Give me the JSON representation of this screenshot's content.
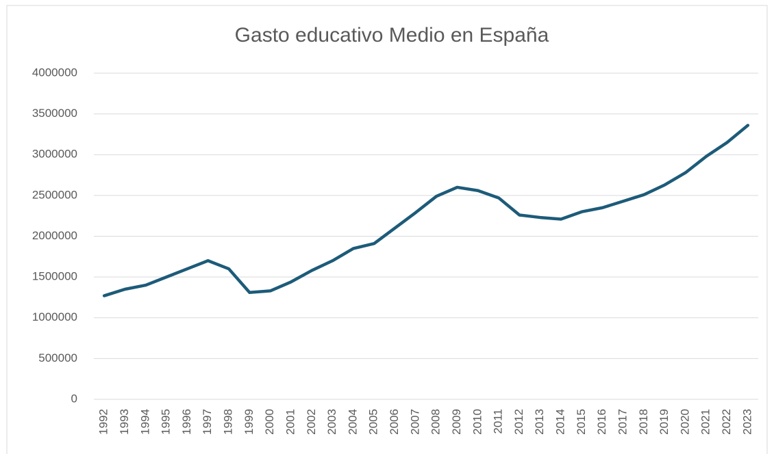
{
  "chart_data": {
    "type": "line",
    "title": "Gasto educativo Medio en España",
    "categories": [
      "1992",
      "1993",
      "1994",
      "1995",
      "1996",
      "1997",
      "1998",
      "1999",
      "2000",
      "2001",
      "2002",
      "2003",
      "2004",
      "2005",
      "2006",
      "2007",
      "2008",
      "2009",
      "2010",
      "2011",
      "2012",
      "2013",
      "2014",
      "2015",
      "2016",
      "2017",
      "2018",
      "2019",
      "2020",
      "2021",
      "2022",
      "2023"
    ],
    "values": [
      1270000,
      1350000,
      1400000,
      1500000,
      1600000,
      1700000,
      1600000,
      1310000,
      1330000,
      1440000,
      1580000,
      1700000,
      1850000,
      1910000,
      2100000,
      2290000,
      2490000,
      2600000,
      2560000,
      2470000,
      2260000,
      2230000,
      2210000,
      2300000,
      2350000,
      2430000,
      2510000,
      2630000,
      2780000,
      2980000,
      3150000,
      3360000
    ],
    "color": "#1d5b79",
    "ylim": [
      0,
      4000000
    ],
    "yticks": [
      0,
      500000,
      1000000,
      1500000,
      2000000,
      2500000,
      3000000,
      3500000,
      4000000
    ],
    "grid": true
  }
}
